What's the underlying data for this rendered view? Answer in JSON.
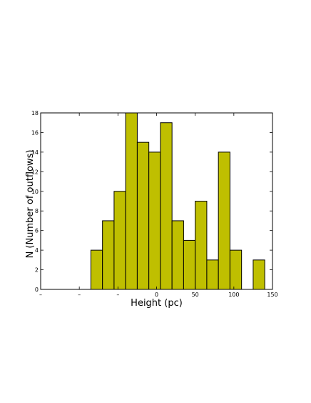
{
  "chart_data": {
    "type": "bar",
    "subtype": "histogram",
    "title": "",
    "xlabel": "Height (pc)",
    "ylabel": "N (Number of outflows)",
    "xlim": [
      -150,
      150
    ],
    "ylim": [
      0,
      18
    ],
    "x_ticks": [
      {
        "value": -150,
        "label": "–"
      },
      {
        "value": -100,
        "label": "–"
      },
      {
        "value": -50,
        "label": "–"
      },
      {
        "value": 0,
        "label": "0"
      },
      {
        "value": 50,
        "label": "50"
      },
      {
        "value": 100,
        "label": "100"
      },
      {
        "value": 150,
        "label": "150"
      }
    ],
    "y_ticks": [
      0,
      2,
      4,
      6,
      8,
      10,
      12,
      14,
      16,
      18
    ],
    "bin_width": 15,
    "bins": [
      {
        "start": -85,
        "end": -70,
        "count": 4
      },
      {
        "start": -70,
        "end": -55,
        "count": 7
      },
      {
        "start": -55,
        "end": -40,
        "count": 10
      },
      {
        "start": -40,
        "end": -25,
        "count": 18
      },
      {
        "start": -25,
        "end": -10,
        "count": 15
      },
      {
        "start": -10,
        "end": 5,
        "count": 14
      },
      {
        "start": 5,
        "end": 20,
        "count": 17
      },
      {
        "start": 20,
        "end": 35,
        "count": 7
      },
      {
        "start": 35,
        "end": 50,
        "count": 5
      },
      {
        "start": 50,
        "end": 65,
        "count": 9
      },
      {
        "start": 65,
        "end": 80,
        "count": 3
      },
      {
        "start": 80,
        "end": 95,
        "count": 14
      },
      {
        "start": 95,
        "end": 110,
        "count": 4
      },
      {
        "start": 125,
        "end": 140,
        "count": 3
      }
    ],
    "bar_color": "#bfbf00",
    "grid": false,
    "legend": "none"
  }
}
